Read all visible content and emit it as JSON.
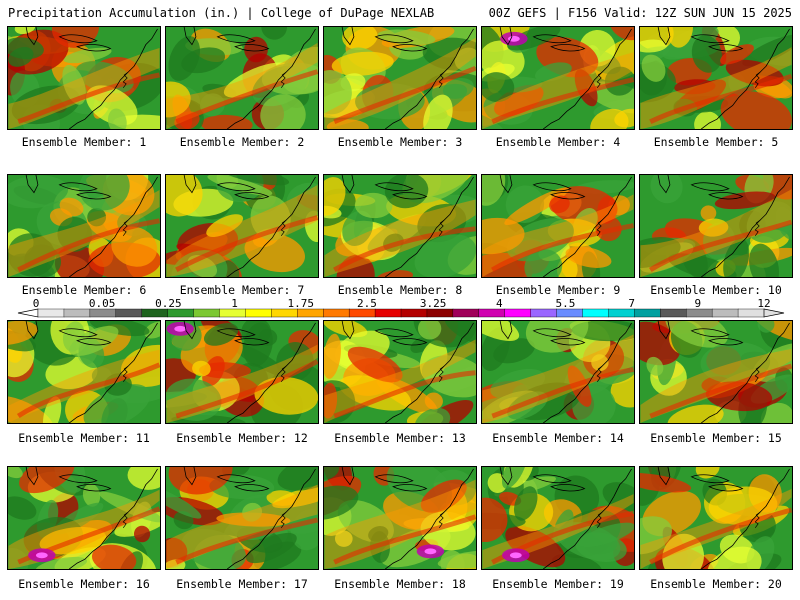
{
  "header": {
    "left": "Precipitation Accumulation (in.) | College of DuPage NEXLAB",
    "right": "00Z GEFS | F156 Valid: 12Z SUN JUN 15 2025"
  },
  "colorbar": {
    "tick_labels": [
      "0",
      "0.05",
      "0.25",
      "1",
      "1.75",
      "2.5",
      "3.25",
      "4",
      "5.5",
      "7",
      "9",
      "12"
    ],
    "colors": [
      "#e8e8e8",
      "#bcbcbc",
      "#8c8c8c",
      "#5a5a5a",
      "#1e641e",
      "#2e9a2e",
      "#7cc832",
      "#e6ff32",
      "#ffff00",
      "#ffd700",
      "#ffa500",
      "#ff7a00",
      "#ff4a00",
      "#e60000",
      "#b40000",
      "#8c0000",
      "#a0005a",
      "#d000b0",
      "#ff00ff",
      "#9a66ff",
      "#6a8cff",
      "#00ffff",
      "#00d0d0",
      "#00a0a0",
      "#5a5a5a",
      "#8c8c8c",
      "#bcbcbc",
      "#e0e0e0"
    ]
  },
  "panels": [
    {
      "label": "Ensemble Member: 1"
    },
    {
      "label": "Ensemble Member: 2"
    },
    {
      "label": "Ensemble Member: 3"
    },
    {
      "label": "Ensemble Member: 4"
    },
    {
      "label": "Ensemble Member: 5"
    },
    {
      "label": "Ensemble Member: 6"
    },
    {
      "label": "Ensemble Member: 7"
    },
    {
      "label": "Ensemble Member: 8"
    },
    {
      "label": "Ensemble Member: 9"
    },
    {
      "label": "Ensemble Member: 10"
    },
    {
      "label": "Ensemble Member: 11"
    },
    {
      "label": "Ensemble Member: 12"
    },
    {
      "label": "Ensemble Member: 13"
    },
    {
      "label": "Ensemble Member: 14"
    },
    {
      "label": "Ensemble Member: 15"
    },
    {
      "label": "Ensemble Member: 16"
    },
    {
      "label": "Ensemble Member: 17"
    },
    {
      "label": "Ensemble Member: 18"
    },
    {
      "label": "Ensemble Member: 19"
    },
    {
      "label": "Ensemble Member: 20"
    }
  ]
}
